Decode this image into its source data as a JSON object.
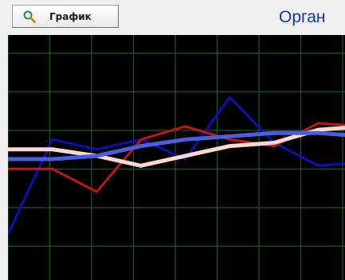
{
  "toolbar": {
    "graph_button": {
      "label": "График",
      "icon": "magnifier-icon"
    },
    "organ_label": "Орган"
  },
  "colors": {
    "plot_background": "#000000",
    "grid": "#1d5a1d",
    "organ_label": "#1238a3"
  },
  "chart_data": {
    "type": "line",
    "grid": true,
    "x": [
      0,
      1,
      2,
      3,
      4,
      5,
      6,
      7,
      8
    ],
    "xlim": [
      0,
      7.6
    ],
    "ylim": [
      0,
      7.5
    ],
    "series": [
      {
        "color": "#0b10b8",
        "width": 3,
        "values": [
          1.4,
          4.3,
          4.0,
          4.3,
          3.7,
          5.6,
          4.2,
          3.5,
          3.6
        ]
      },
      {
        "color": "#c21518",
        "width": 3,
        "values": [
          3.4,
          3.4,
          2.7,
          4.3,
          4.7,
          4.3,
          4.1,
          4.8,
          4.7
        ]
      },
      {
        "color": "#ffd8d0",
        "width": 5,
        "values": [
          4.0,
          4.0,
          3.8,
          3.5,
          3.8,
          4.1,
          4.2,
          4.6,
          4.7
        ]
      },
      {
        "color": "#4a5ee0",
        "width": 5,
        "values": [
          3.7,
          3.7,
          3.8,
          4.1,
          4.3,
          4.4,
          4.5,
          4.5,
          4.4
        ]
      }
    ]
  }
}
